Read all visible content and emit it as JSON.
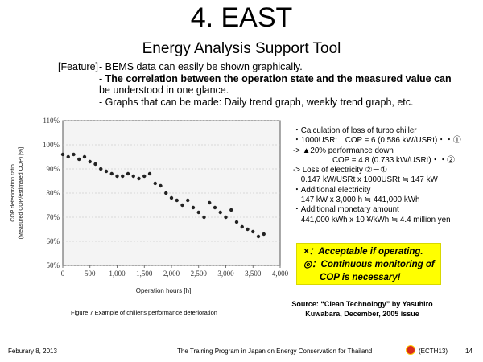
{
  "title": "4. EAST",
  "subtitle": "Energy Analysis Support Tool",
  "feature_label": "[Feature]",
  "features": [
    "- BEMS data can easily be shown graphically.",
    "- The correlation between the operation state and the measured value can",
    "  be understood in one glance.",
    "- Graphs that can be made: Daily trend graph, weekly trend graph, etc."
  ],
  "calculation": [
    "・Calculation of loss of turbo chiller",
    "・1000USRt　COP = 6 (0.586 kW/USRt)・・①",
    "-> ▲20% performance down",
    "　　　　　COP = 4.8 (0.733 kW/USRt)・・②",
    "-> Loss of electricity  ②－①",
    "　0.147 kW/USRt x 1000USRt ≒ 147 kW",
    "・Additional electricity",
    "　147 kW x 3,000 h ≒ 441,000 kWh",
    "・Additional monetary amount",
    "　441,000 kWh x 10 ¥/kWh ≒ 4.4 million yen"
  ],
  "note": {
    "line1": "×：Acceptable if operating.",
    "line2": "◎：Continuous monitoring of",
    "line3": "COP is necessary!"
  },
  "source": {
    "line1": "Source: “Clean Technology” by Yasuhiro",
    "line2": "Kuwabara, December, 2005 issue"
  },
  "chart_caption": "Figure 7 Example of chiller's performance deterioration",
  "footer": {
    "date": "Feburary 8, 2013",
    "program": "The Training Program in Japan on Energy Conservation for Thailand",
    "code": "(ECTH13)",
    "page": "14"
  },
  "chart_data": {
    "type": "scatter",
    "xlabel": "Operation hours [h]",
    "ylabel_line1": "COP deterioration ratio",
    "ylabel_line2": "(Measured COP/estimated COP) [%]",
    "xlim": [
      0,
      4000
    ],
    "ylim": [
      50,
      110
    ],
    "x_ticks": [
      0,
      500,
      1000,
      1500,
      2000,
      2500,
      3000,
      3500,
      4000
    ],
    "x_tick_labels": [
      "0",
      "500",
      "1,000",
      "1,500",
      "2,000",
      "2,500",
      "3,000",
      "3,500",
      "4,000"
    ],
    "y_ticks": [
      50,
      60,
      70,
      80,
      90,
      100,
      110
    ],
    "y_tick_labels": [
      "50%",
      "60%",
      "70%",
      "80%",
      "90%",
      "100%",
      "110%"
    ],
    "series": [
      {
        "x": [
          0,
          100,
          200,
          300,
          400,
          500,
          600,
          700,
          800,
          900,
          1000,
          1100,
          1200,
          1300,
          1400,
          1500,
          1600,
          1700,
          1800,
          1900,
          2000,
          2100,
          2200,
          2300,
          2400,
          2500,
          2600,
          2700,
          2800,
          2900,
          3000,
          3100,
          3200,
          3300,
          3400,
          3500,
          3600,
          3700
        ],
        "y": [
          96,
          95,
          96,
          94,
          95,
          93,
          92,
          90,
          89,
          88,
          87,
          87,
          88,
          87,
          86,
          87,
          88,
          84,
          83,
          80,
          78,
          77,
          75,
          77,
          74,
          72,
          70,
          76,
          74,
          72,
          70,
          73,
          68,
          66,
          65,
          64,
          62,
          63
        ]
      }
    ]
  }
}
